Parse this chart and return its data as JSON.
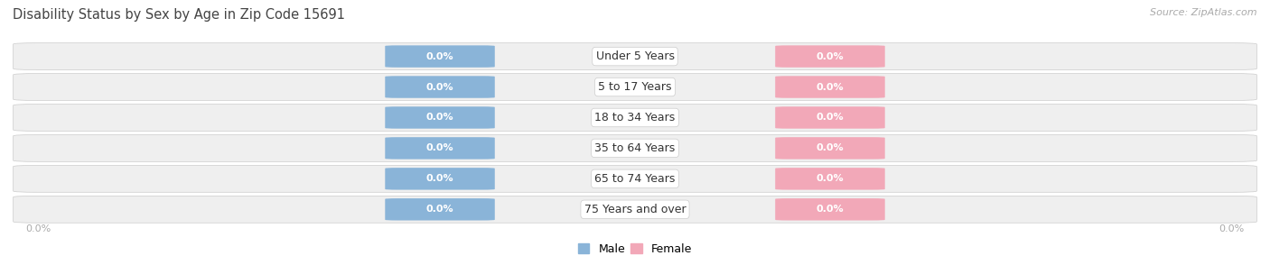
{
  "title": "Disability Status by Sex by Age in Zip Code 15691",
  "source": "Source: ZipAtlas.com",
  "categories": [
    "Under 5 Years",
    "5 to 17 Years",
    "18 to 34 Years",
    "35 to 64 Years",
    "65 to 74 Years",
    "75 Years and over"
  ],
  "male_values": [
    0.0,
    0.0,
    0.0,
    0.0,
    0.0,
    0.0
  ],
  "female_values": [
    0.0,
    0.0,
    0.0,
    0.0,
    0.0,
    0.0
  ],
  "male_color": "#8ab4d8",
  "female_color": "#f2a8b8",
  "row_bg_color": "#efefef",
  "bg_color": "#ffffff",
  "category_label_color": "#333333",
  "title_color": "#444444",
  "axis_label_color": "#aaaaaa",
  "legend_male": "Male",
  "legend_female": "Female",
  "bar_height": 0.68,
  "title_fontsize": 10.5,
  "label_fontsize": 8,
  "category_fontsize": 9,
  "source_fontsize": 8
}
